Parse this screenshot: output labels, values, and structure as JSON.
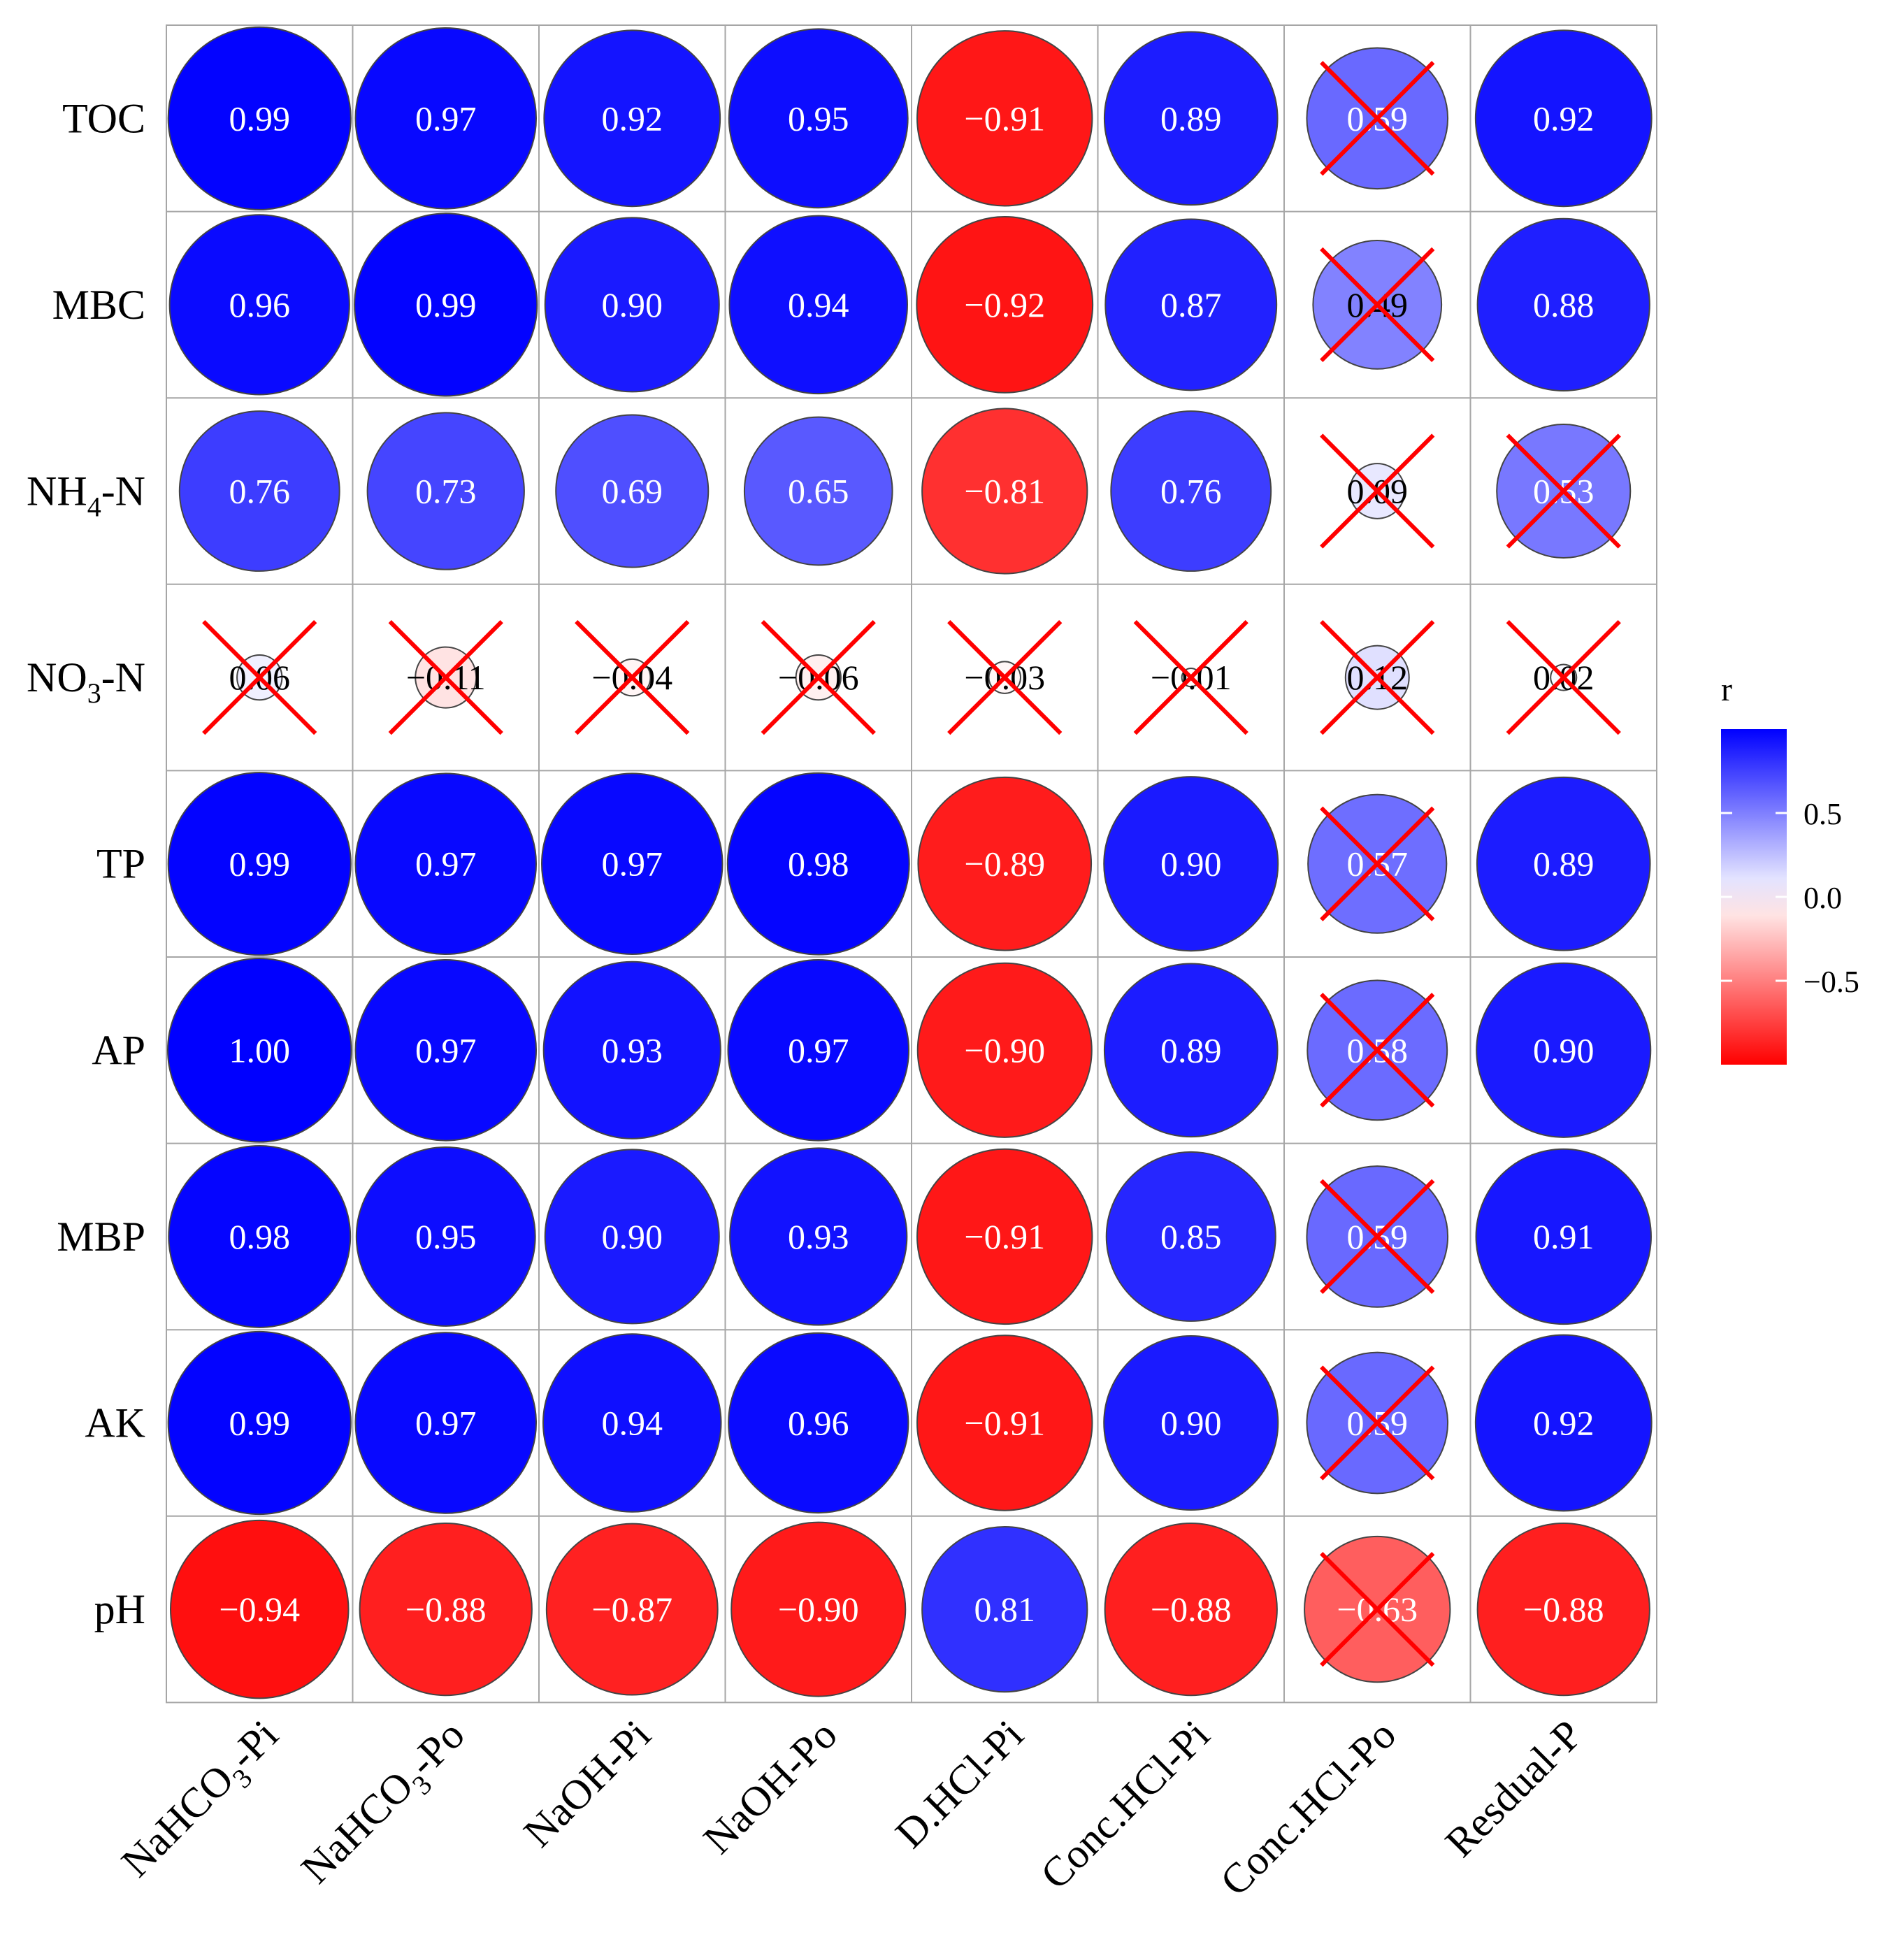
{
  "chart_data": {
    "type": "heatmap",
    "subtype": "correlation-circle-matrix",
    "title": "",
    "rows": [
      {
        "label": "TOC",
        "sub": ""
      },
      {
        "label": "MBC",
        "sub": ""
      },
      {
        "label": "NH",
        "sub": "4",
        "suffix": "-N"
      },
      {
        "label": "NO",
        "sub": "3",
        "suffix": "-N"
      },
      {
        "label": "TP",
        "sub": ""
      },
      {
        "label": "AP",
        "sub": ""
      },
      {
        "label": "MBP",
        "sub": ""
      },
      {
        "label": "AK",
        "sub": ""
      },
      {
        "label": "pH",
        "sub": ""
      }
    ],
    "columns": [
      {
        "label": "NaHCO",
        "sub": "3",
        "suffix": "-Pi"
      },
      {
        "label": "NaHCO",
        "sub": "3",
        "suffix": "-Po"
      },
      {
        "label": "NaOH-Pi",
        "sub": "",
        "suffix": ""
      },
      {
        "label": "NaOH-Po",
        "sub": "",
        "suffix": ""
      },
      {
        "label": "D.HCl-Pi",
        "sub": "",
        "suffix": ""
      },
      {
        "label": "Conc.HCl-Pi",
        "sub": "",
        "suffix": ""
      },
      {
        "label": "Conc.HCl-Po",
        "sub": "",
        "suffix": ""
      },
      {
        "label": "Resdual-P",
        "sub": "",
        "suffix": ""
      }
    ],
    "values": [
      [
        0.99,
        0.97,
        0.92,
        0.95,
        -0.91,
        0.89,
        0.59,
        0.92
      ],
      [
        0.96,
        0.99,
        0.9,
        0.94,
        -0.92,
        0.87,
        0.49,
        0.88
      ],
      [
        0.76,
        0.73,
        0.69,
        0.65,
        -0.81,
        0.76,
        0.09,
        0.53
      ],
      [
        0.06,
        -0.11,
        -0.04,
        -0.06,
        -0.03,
        -0.01,
        0.12,
        0.02
      ],
      [
        0.99,
        0.97,
        0.97,
        0.98,
        -0.89,
        0.9,
        0.57,
        0.89
      ],
      [
        1.0,
        0.97,
        0.93,
        0.97,
        -0.9,
        0.89,
        0.58,
        0.9
      ],
      [
        0.98,
        0.95,
        0.9,
        0.93,
        -0.91,
        0.85,
        0.59,
        0.91
      ],
      [
        0.99,
        0.97,
        0.94,
        0.96,
        -0.91,
        0.9,
        0.59,
        0.92
      ],
      [
        -0.94,
        -0.88,
        -0.87,
        -0.9,
        0.81,
        -0.88,
        -0.63,
        -0.88
      ]
    ],
    "labels": [
      [
        "0.99",
        "0.97",
        "0.92",
        "0.95",
        "−0.91",
        "0.89",
        "0.59",
        "0.92"
      ],
      [
        "0.96",
        "0.99",
        "0.90",
        "0.94",
        "−0.92",
        "0.87",
        "0.49",
        "0.88"
      ],
      [
        "0.76",
        "0.73",
        "0.69",
        "0.65",
        "−0.81",
        "0.76",
        "0.09",
        "0.53"
      ],
      [
        "0.06",
        "−0.11",
        "−0.04",
        "−0.06",
        "−0.03",
        "−0.01",
        "0.12",
        "0.02"
      ],
      [
        "0.99",
        "0.97",
        "0.97",
        "0.98",
        "−0.89",
        "0.90",
        "0.57",
        "0.89"
      ],
      [
        "1.00",
        "0.97",
        "0.93",
        "0.97",
        "−0.90",
        "0.89",
        "0.58",
        "0.90"
      ],
      [
        "0.98",
        "0.95",
        "0.90",
        "0.93",
        "−0.91",
        "0.85",
        "0.59",
        "0.91"
      ],
      [
        "0.99",
        "0.97",
        "0.94",
        "0.96",
        "−0.91",
        "0.90",
        "0.59",
        "0.92"
      ],
      [
        "−0.94",
        "−0.88",
        "−0.87",
        "−0.90",
        "0.81",
        "−0.88",
        "−0.63",
        "−0.88"
      ]
    ],
    "insignificant": [
      [
        false,
        false,
        false,
        false,
        false,
        false,
        true,
        false
      ],
      [
        false,
        false,
        false,
        false,
        false,
        false,
        true,
        false
      ],
      [
        false,
        false,
        false,
        false,
        false,
        false,
        true,
        true
      ],
      [
        true,
        true,
        true,
        true,
        true,
        true,
        true,
        true
      ],
      [
        false,
        false,
        false,
        false,
        false,
        false,
        true,
        false
      ],
      [
        false,
        false,
        false,
        false,
        false,
        false,
        true,
        false
      ],
      [
        false,
        false,
        false,
        false,
        false,
        false,
        true,
        false
      ],
      [
        false,
        false,
        false,
        false,
        false,
        false,
        true,
        false
      ],
      [
        false,
        false,
        false,
        false,
        false,
        false,
        true,
        false
      ]
    ],
    "legend": {
      "title": "r",
      "range": [
        -1,
        1
      ],
      "ticks": [
        0.5,
        0.0,
        -0.5
      ],
      "tick_labels": [
        "0.5",
        "0.0",
        "−0.5"
      ],
      "placement": "right"
    },
    "colors": {
      "positive": "#0000ff",
      "zero": "#ffffff",
      "negative": "#ff0000",
      "cross": "#ff0000",
      "grid": "#a6a6a6",
      "circle_border": "#444444"
    }
  }
}
